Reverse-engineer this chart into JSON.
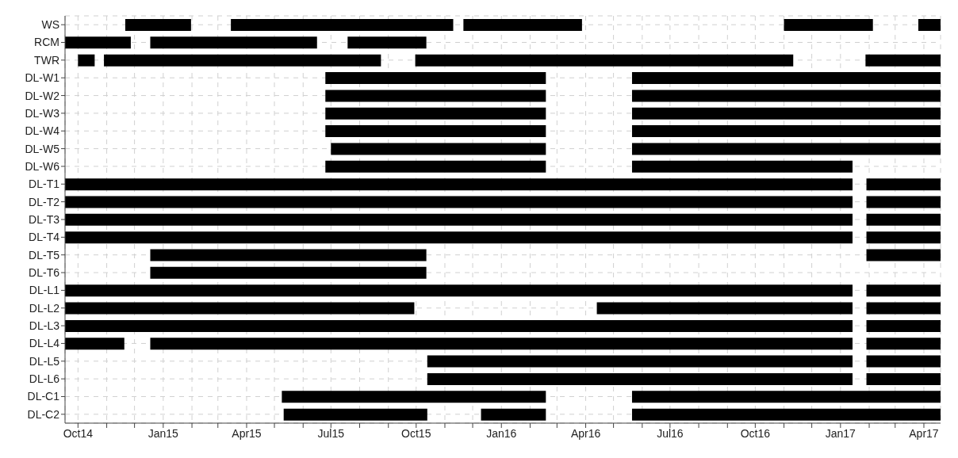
{
  "chart_data": {
    "type": "bar",
    "orientation": "horizontal",
    "grid": true,
    "categories": [
      "WS",
      "RCM",
      "TWR",
      "DL-W1",
      "DL-W2",
      "DL-W3",
      "DL-W4",
      "DL-W5",
      "DL-W6",
      "DL-T1",
      "DL-T2",
      "DL-T3",
      "DL-T4",
      "DL-T5",
      "DL-T6",
      "DL-L1",
      "DL-L2",
      "DL-L3",
      "DL-L4",
      "DL-L5",
      "DL-L6",
      "DL-C1",
      "DL-C2"
    ],
    "xlim": [
      "2014-09-17",
      "2017-04-19"
    ],
    "xticks": [
      {
        "value": "2014-10-01",
        "label": "Oct14"
      },
      {
        "value": "2014-11-01",
        "label": null
      },
      {
        "value": "2014-12-01",
        "label": null
      },
      {
        "value": "2015-01-01",
        "label": "Jan15"
      },
      {
        "value": "2015-02-01",
        "label": null
      },
      {
        "value": "2015-03-01",
        "label": null
      },
      {
        "value": "2015-04-01",
        "label": "Apr15"
      },
      {
        "value": "2015-05-01",
        "label": null
      },
      {
        "value": "2015-06-01",
        "label": null
      },
      {
        "value": "2015-07-01",
        "label": "Jul15"
      },
      {
        "value": "2015-08-01",
        "label": null
      },
      {
        "value": "2015-09-01",
        "label": null
      },
      {
        "value": "2015-10-01",
        "label": "Oct15"
      },
      {
        "value": "2015-11-01",
        "label": null
      },
      {
        "value": "2015-12-01",
        "label": null
      },
      {
        "value": "2016-01-01",
        "label": "Jan16"
      },
      {
        "value": "2016-02-01",
        "label": null
      },
      {
        "value": "2016-03-01",
        "label": null
      },
      {
        "value": "2016-04-01",
        "label": "Apr16"
      },
      {
        "value": "2016-05-01",
        "label": null
      },
      {
        "value": "2016-06-01",
        "label": null
      },
      {
        "value": "2016-07-01",
        "label": "Jul16"
      },
      {
        "value": "2016-08-01",
        "label": null
      },
      {
        "value": "2016-09-01",
        "label": null
      },
      {
        "value": "2016-10-01",
        "label": "Oct16"
      },
      {
        "value": "2016-11-01",
        "label": null
      },
      {
        "value": "2016-12-01",
        "label": null
      },
      {
        "value": "2017-01-01",
        "label": "Jan17"
      },
      {
        "value": "2017-02-01",
        "label": null
      },
      {
        "value": "2017-03-01",
        "label": null
      },
      {
        "value": "2017-04-01",
        "label": "Apr17"
      }
    ],
    "series": [
      {
        "color": "#000000",
        "base": [
          16395,
          16330,
          16344,
          16611,
          16611,
          16611,
          16611,
          16617,
          16611,
          16330,
          16330,
          16330,
          16330,
          16422,
          16422,
          16330,
          16330,
          16330,
          16330,
          16721,
          16721,
          16564,
          16566
        ],
        "values": [
          71,
          71,
          18,
          238,
          238,
          238,
          238,
          232,
          238,
          850,
          850,
          850,
          850,
          298,
          298,
          850,
          377,
          850,
          64,
          459,
          459,
          285,
          155
        ]
      },
      {
        "color": "#000000",
        "base": [
          16509,
          16422,
          16372,
          16942,
          16942,
          16942,
          16942,
          16942,
          16942,
          17195,
          17195,
          17195,
          17195,
          17195,
          null,
          17195,
          16904,
          17195,
          16422,
          17195,
          17195,
          16942,
          16779
        ],
        "values": [
          240,
          180,
          299,
          333,
          333,
          333,
          333,
          333,
          238,
          80,
          80,
          80,
          80,
          80,
          null,
          80,
          276,
          80,
          758,
          80,
          80,
          333,
          70
        ]
      },
      {
        "color": "#000000",
        "base": [
          16760,
          16635,
          16708,
          null,
          null,
          null,
          null,
          null,
          null,
          null,
          null,
          null,
          null,
          null,
          null,
          null,
          17195,
          null,
          17195,
          null,
          null,
          null,
          16942
        ],
        "values": [
          128,
          85,
          408,
          null,
          null,
          null,
          null,
          null,
          null,
          null,
          null,
          null,
          null,
          null,
          null,
          null,
          80,
          null,
          80,
          null,
          null,
          null,
          333
        ]
      },
      {
        "color": "#000000",
        "base": [
          17106,
          null,
          17194,
          null,
          null,
          null,
          null,
          null,
          null,
          null,
          null,
          null,
          null,
          null,
          null,
          null,
          null,
          null,
          null,
          null,
          null,
          null,
          null
        ],
        "values": [
          96,
          null,
          81,
          null,
          null,
          null,
          null,
          null,
          null,
          null,
          null,
          null,
          null,
          null,
          null,
          null,
          null,
          null,
          null,
          null,
          null,
          null,
          null
        ]
      },
      {
        "color": "#000000",
        "base": [
          17251,
          null,
          null,
          null,
          null,
          null,
          null,
          null,
          null,
          null,
          null,
          null,
          null,
          null,
          null,
          null,
          null,
          null,
          null,
          null,
          null,
          null,
          null
        ],
        "values": [
          24,
          null,
          null,
          null,
          null,
          null,
          null,
          null,
          null,
          null,
          null,
          null,
          null,
          null,
          null,
          null,
          null,
          null,
          null,
          null,
          null,
          null,
          null
        ]
      }
    ]
  }
}
